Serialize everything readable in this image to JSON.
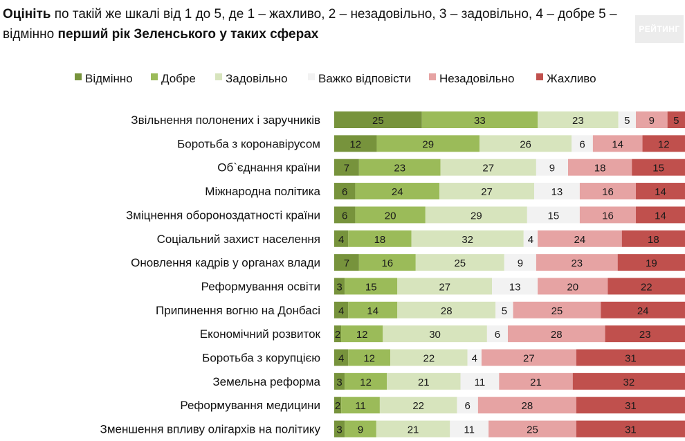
{
  "title": {
    "part1_bold": "Оцініть",
    "part2": " по такій же шкалі від 1 до 5, де 1 – жахливо, 2 – незадовільно, 3 – задовільно, 4 – добре 5 – відмінно ",
    "part3_bold": "перший рік Зеленського у таких сферах"
  },
  "logo_text": "РЕЙТИНГ",
  "chart_data": {
    "type": "bar",
    "orientation": "horizontal",
    "stacked": true,
    "percent_stacked": true,
    "legend_position": "top",
    "grid": false,
    "categories": [
      "Звільнення полонених і заручників",
      "Боротьба з коронавірусом",
      "Об`єднання країни",
      "Міжнародна політика",
      "Зміцнення обороноздатності країни",
      "Соціальний захист населення",
      "Оновлення кадрів у органах влади",
      "Реформування освіти",
      "Припинення вогню на Донбасі",
      "Економічний розвиток",
      "Боротьба з корупцією",
      "Земельна реформа",
      "Реформування медицини",
      "Зменшення впливу олігархів на політику"
    ],
    "series": [
      {
        "name": "Відмінно",
        "color": "#77933c",
        "values": [
          25,
          12,
          7,
          6,
          6,
          4,
          7,
          3,
          4,
          2,
          4,
          3,
          2,
          3
        ]
      },
      {
        "name": "Добре",
        "color": "#9bbb59",
        "values": [
          33,
          29,
          23,
          24,
          20,
          18,
          16,
          15,
          14,
          12,
          12,
          12,
          11,
          9
        ]
      },
      {
        "name": "Задовільно",
        "color": "#d7e4bd",
        "values": [
          23,
          26,
          27,
          27,
          29,
          32,
          25,
          27,
          28,
          30,
          22,
          21,
          22,
          21
        ]
      },
      {
        "name": "Важко відповісти",
        "color": "#f2f2f2",
        "values": [
          5,
          6,
          9,
          13,
          15,
          4,
          9,
          13,
          5,
          6,
          4,
          11,
          6,
          11
        ]
      },
      {
        "name": "Незадовільно",
        "color": "#e6a3a3",
        "values": [
          9,
          14,
          18,
          16,
          16,
          24,
          23,
          20,
          25,
          28,
          27,
          21,
          28,
          25
        ]
      },
      {
        "name": "Жахливо",
        "color": "#c0504d",
        "values": [
          5,
          12,
          15,
          14,
          14,
          18,
          19,
          22,
          24,
          23,
          31,
          32,
          31,
          31
        ]
      }
    ]
  }
}
